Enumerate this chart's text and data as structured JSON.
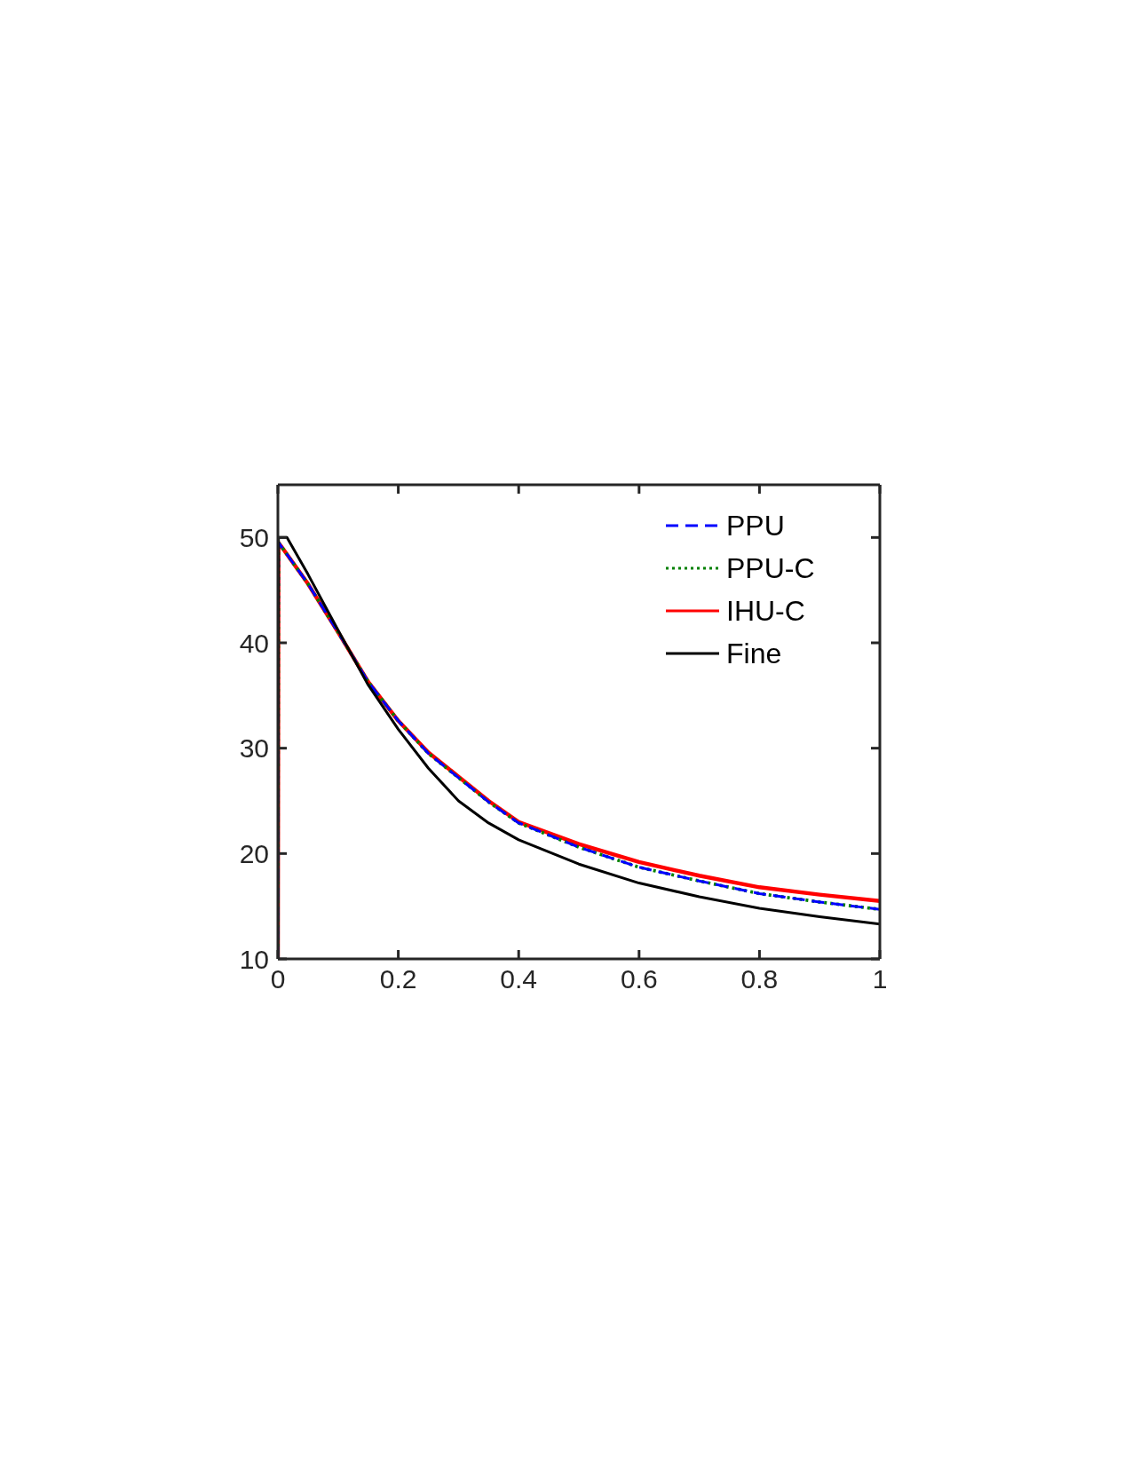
{
  "chart_data": {
    "type": "line",
    "xlim": [
      0,
      1
    ],
    "xticks": [
      0,
      0.2,
      0.4,
      0.6,
      0.8,
      1
    ],
    "ylim": [
      10,
      55
    ],
    "yticks": [
      10,
      20,
      30,
      40,
      50
    ],
    "grid": false,
    "legend": "top right",
    "marker": "none",
    "series": [
      {
        "name": "PPU",
        "color": "#0000ff",
        "line_style": "dashed",
        "x": [
          0,
          0.001,
          0.005,
          0.05,
          0.1,
          0.15,
          0.2,
          0.25,
          0.3,
          0.35,
          0.4,
          0.5,
          0.6,
          0.7,
          0.8,
          0.9,
          1
        ],
        "values": [
          10,
          49.5,
          49.2,
          45.6,
          41.0,
          36.3,
          32.6,
          29.5,
          27.2,
          24.9,
          22.9,
          20.6,
          18.7,
          17.4,
          16.2,
          15.4,
          14.7
        ]
      },
      {
        "name": "PPU-C",
        "color": "#008000",
        "line_style": "dotted",
        "x": [
          0,
          0.001,
          0.005,
          0.05,
          0.1,
          0.15,
          0.2,
          0.25,
          0.3,
          0.35,
          0.4,
          0.5,
          0.6,
          0.7,
          0.8,
          0.9,
          1
        ],
        "values": [
          10,
          49.5,
          49.2,
          45.6,
          41.0,
          36.3,
          32.6,
          29.5,
          27.2,
          24.9,
          22.9,
          20.6,
          18.7,
          17.4,
          16.2,
          15.4,
          14.7
        ]
      },
      {
        "name": "IHU-C",
        "color": "#ff0000",
        "line_style": "solid",
        "x": [
          0,
          0.001,
          0.005,
          0.05,
          0.1,
          0.15,
          0.2,
          0.25,
          0.3,
          0.35,
          0.4,
          0.5,
          0.6,
          0.7,
          0.8,
          0.9,
          1
        ],
        "values": [
          10,
          49.5,
          49.2,
          45.6,
          41.0,
          36.3,
          32.6,
          29.6,
          27.3,
          25.0,
          23.0,
          20.9,
          19.2,
          17.9,
          16.8,
          16.1,
          15.5
        ]
      },
      {
        "name": "Fine",
        "color": "#000000",
        "line_style": "solid",
        "x": [
          0,
          0.001,
          0.015,
          0.05,
          0.1,
          0.15,
          0.2,
          0.25,
          0.3,
          0.35,
          0.4,
          0.5,
          0.6,
          0.7,
          0.8,
          0.9,
          1
        ],
        "values": [
          10,
          50,
          50,
          46.5,
          41.2,
          36.0,
          31.8,
          28.1,
          25.0,
          22.9,
          21.3,
          19.0,
          17.2,
          15.9,
          14.8,
          14.0,
          13.3
        ]
      }
    ]
  }
}
